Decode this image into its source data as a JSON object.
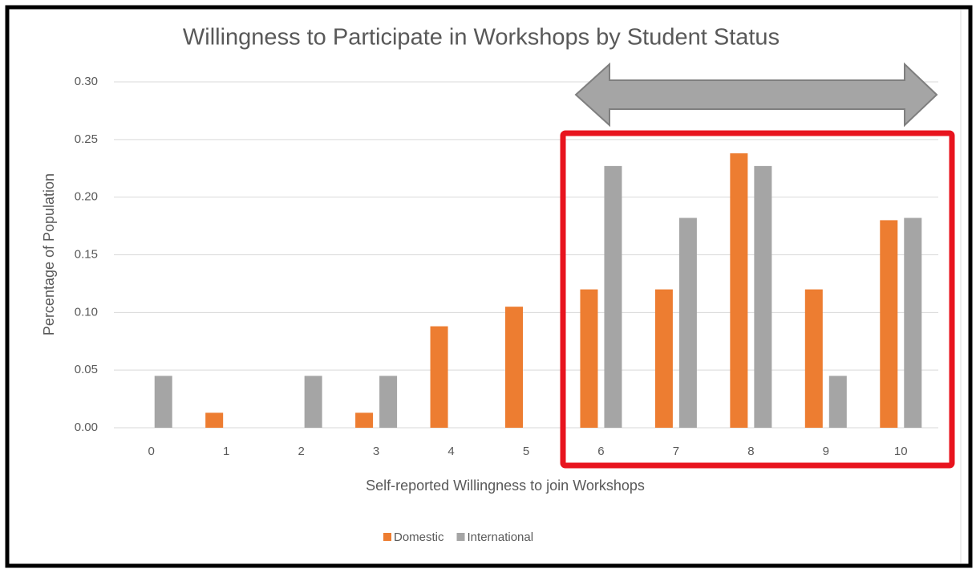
{
  "chart_data": {
    "type": "bar",
    "title": "Willingness to Participate in Workshops by Student Status",
    "x_label": "Self-reported Willingness to join Workshops",
    "y_label": "Percentage of Population",
    "categories": [
      "0",
      "1",
      "2",
      "3",
      "4",
      "5",
      "6",
      "7",
      "8",
      "9",
      "10"
    ],
    "series": [
      {
        "name": "Domestic",
        "color": "#ed7d31",
        "values": [
          0,
          0.013,
          0,
          0.013,
          0.088,
          0.105,
          0.12,
          0.12,
          0.238,
          0.12,
          0.18
        ]
      },
      {
        "name": "International",
        "color": "#a5a5a5",
        "values": [
          0.045,
          0,
          0.045,
          0.045,
          0,
          0,
          0.227,
          0.182,
          0.227,
          0.045,
          0.182
        ]
      }
    ],
    "ylim": [
      0,
      0.3
    ],
    "yticks": [
      {
        "value": 0,
        "label": "0.00"
      },
      {
        "value": 0.05,
        "label": "0.05"
      },
      {
        "value": 0.1,
        "label": "0.10"
      },
      {
        "value": 0.15,
        "label": "0.15"
      },
      {
        "value": 0.2,
        "label": "0.20"
      },
      {
        "value": 0.25,
        "label": "0.25"
      },
      {
        "value": 0.3,
        "label": "0.30"
      }
    ],
    "grid": true,
    "legend": "bottom"
  }
}
